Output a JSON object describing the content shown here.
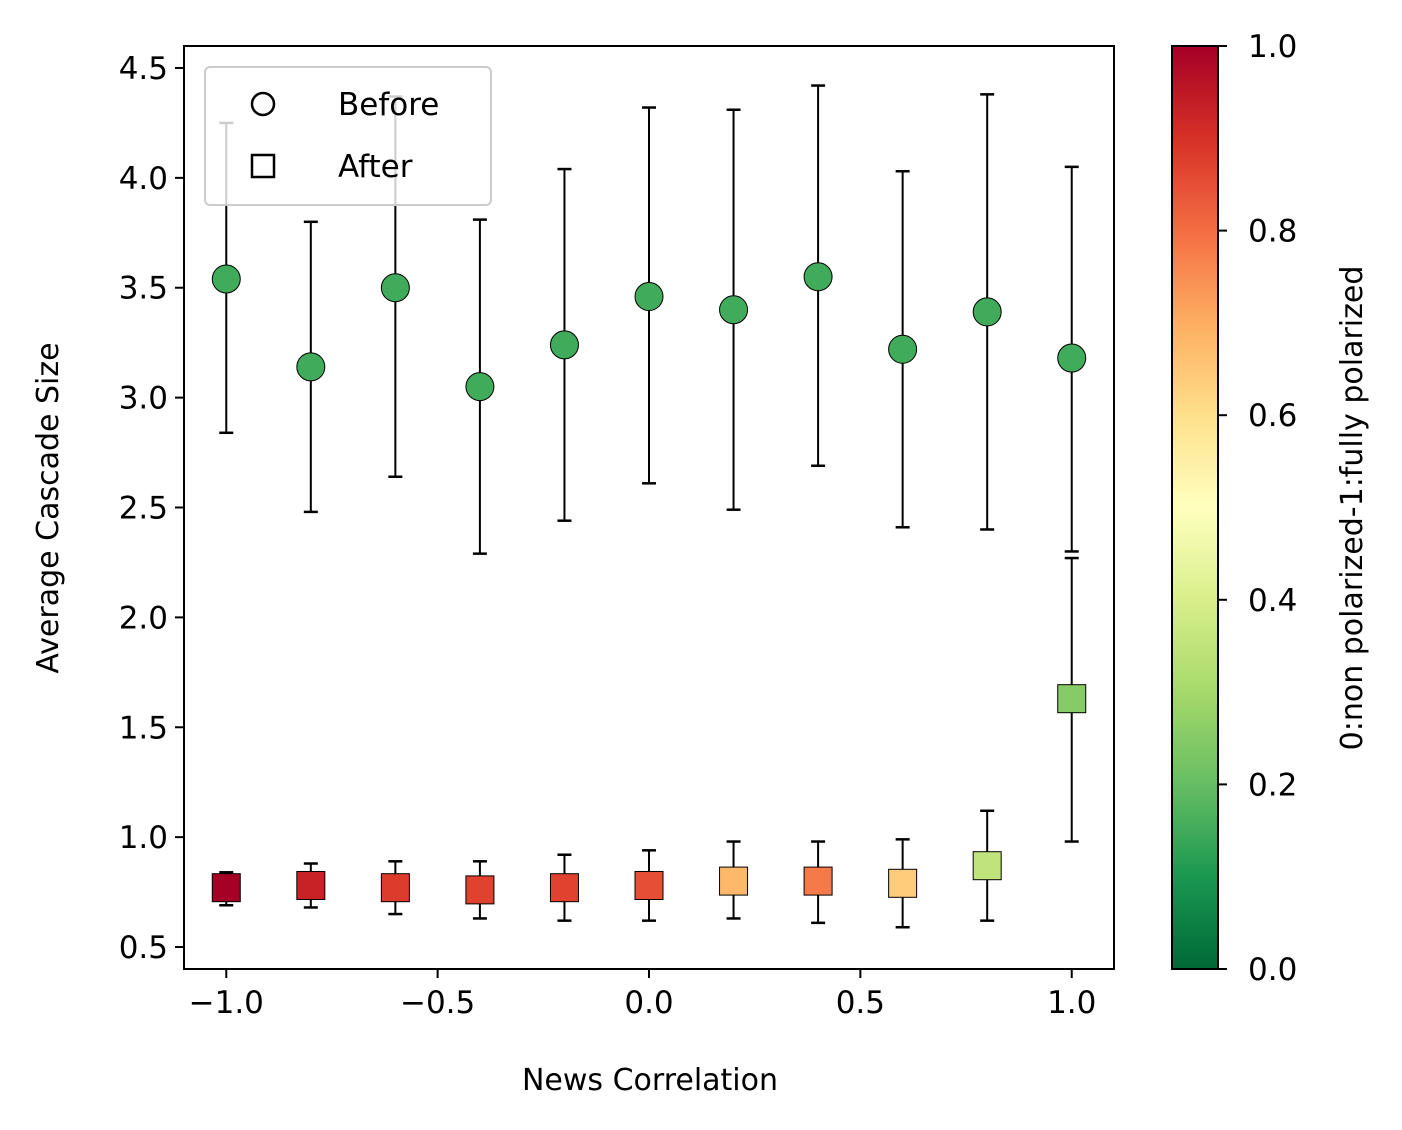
{
  "chart_data": {
    "type": "scatter",
    "xlabel": "News Correlation",
    "ylabel": "Average Cascade Size",
    "xlim": [
      -1.1,
      1.1
    ],
    "ylim": [
      0.4,
      4.6
    ],
    "x_ticks": [
      "−1.0",
      "−0.5",
      "0.0",
      "0.5",
      "1.0"
    ],
    "x_tick_values": [
      -1.0,
      -0.5,
      0.0,
      0.5,
      1.0
    ],
    "y_ticks": [
      "0.5",
      "1.0",
      "1.5",
      "2.0",
      "2.5",
      "3.0",
      "3.5",
      "4.0",
      "4.5"
    ],
    "y_tick_values": [
      0.5,
      1.0,
      1.5,
      2.0,
      2.5,
      3.0,
      3.5,
      4.0,
      4.5
    ],
    "grid": false,
    "legend": {
      "placement": "top-left",
      "entries": [
        {
          "label": "Before",
          "marker": "circle"
        },
        {
          "label": "After",
          "marker": "square"
        }
      ]
    },
    "x": [
      -1.0,
      -0.8,
      -0.6,
      -0.4,
      -0.2,
      0.0,
      0.2,
      0.4,
      0.6,
      0.8,
      1.0
    ],
    "series": [
      {
        "name": "Before",
        "marker": "circle",
        "values": [
          3.54,
          3.14,
          3.5,
          3.05,
          3.24,
          3.46,
          3.4,
          3.55,
          3.22,
          3.39,
          3.18
        ],
        "err_low": [
          2.84,
          2.48,
          2.64,
          2.29,
          2.44,
          2.61,
          2.49,
          2.69,
          2.41,
          2.4,
          2.3
        ],
        "err_high": [
          4.25,
          3.8,
          4.37,
          3.81,
          4.04,
          4.32,
          4.31,
          4.42,
          4.03,
          4.38,
          4.05
        ],
        "polarization": [
          0.15,
          0.15,
          0.15,
          0.15,
          0.15,
          0.15,
          0.15,
          0.15,
          0.15,
          0.15,
          0.15
        ]
      },
      {
        "name": "After",
        "marker": "square",
        "values": [
          0.77,
          0.78,
          0.77,
          0.76,
          0.77,
          0.78,
          0.8,
          0.8,
          0.79,
          0.87,
          1.63
        ],
        "err_low": [
          0.69,
          0.68,
          0.65,
          0.63,
          0.62,
          0.62,
          0.63,
          0.61,
          0.59,
          0.62,
          0.98
        ],
        "err_high": [
          0.84,
          0.88,
          0.89,
          0.89,
          0.92,
          0.94,
          0.98,
          0.98,
          0.99,
          1.12,
          2.27
        ],
        "polarization": [
          1.0,
          0.93,
          0.88,
          0.87,
          0.87,
          0.85,
          0.68,
          0.78,
          0.64,
          0.35,
          0.25
        ]
      }
    ],
    "colorbar": {
      "label": "0:non polarized-1:fully polarized",
      "colormap": "RdYlGn_r",
      "range": [
        0.0,
        1.0
      ],
      "ticks": [
        "0.0",
        "0.2",
        "0.4",
        "0.6",
        "0.8",
        "1.0"
      ],
      "tick_values": [
        0.0,
        0.2,
        0.4,
        0.6,
        0.8,
        1.0
      ],
      "colors": [
        "#006837",
        "#1a9850",
        "#66bd63",
        "#a6d96a",
        "#d9ef8b",
        "#ffffbf",
        "#fee08b",
        "#fdae61",
        "#f46d43",
        "#d73027",
        "#a50026"
      ]
    }
  }
}
